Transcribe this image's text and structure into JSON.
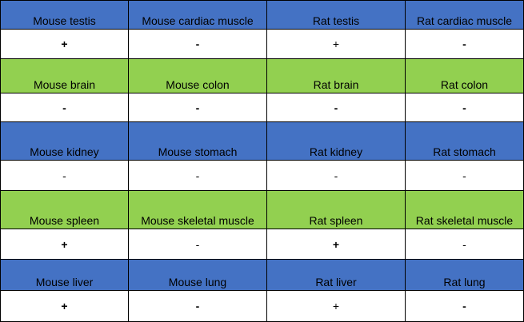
{
  "colors": {
    "blue": "#4472c4",
    "green": "#92d050",
    "white": "#ffffff"
  },
  "rows": [
    {
      "kind": "header",
      "color": "blue",
      "height": 37,
      "cells": [
        "Mouse testis",
        "Mouse cardiac muscle",
        "Rat testis",
        "Rat cardiac muscle"
      ]
    },
    {
      "kind": "value",
      "height": 37,
      "cells": [
        "+",
        "-",
        "+",
        "-"
      ],
      "weights": [
        "bold",
        "bold",
        "light",
        "bold"
      ]
    },
    {
      "kind": "header",
      "color": "green",
      "height": 43,
      "cells": [
        "Mouse brain",
        "Mouse colon",
        "Rat brain",
        "Rat colon"
      ]
    },
    {
      "kind": "value",
      "height": 36,
      "cells": [
        "-",
        "-",
        "-",
        "-"
      ],
      "weights": [
        "bold",
        "bold",
        "bold",
        "bold"
      ]
    },
    {
      "kind": "header",
      "color": "blue",
      "height": 48,
      "cells": [
        "Mouse kidney",
        "Mouse stomach",
        "Rat kidney",
        "Rat stomach"
      ]
    },
    {
      "kind": "value",
      "height": 38,
      "cells": [
        "-",
        "-",
        "-",
        "-"
      ],
      "weights": [
        "light",
        "light",
        "light",
        "light"
      ]
    },
    {
      "kind": "header",
      "color": "green",
      "height": 48,
      "cells": [
        "Mouse spleen",
        "Mouse skeletal muscle",
        "Rat spleen",
        "Rat skeletal muscle"
      ]
    },
    {
      "kind": "value",
      "height": 38,
      "cells": [
        "+",
        "-",
        "+",
        "-"
      ],
      "weights": [
        "bold",
        "light",
        "bold",
        "light"
      ]
    },
    {
      "kind": "header",
      "color": "blue",
      "height": 39,
      "cells": [
        "Mouse liver",
        "Mouse lung",
        "Rat liver",
        "Rat lung"
      ]
    },
    {
      "kind": "value",
      "height": 39,
      "cells": [
        "+",
        "-",
        "+",
        "-"
      ],
      "weights": [
        "bold",
        "bold",
        "light",
        "bold"
      ]
    }
  ]
}
